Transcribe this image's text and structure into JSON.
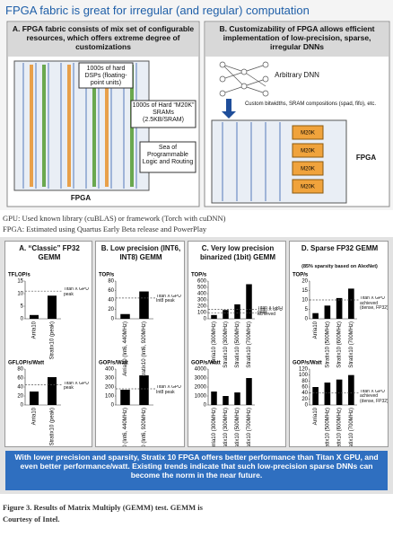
{
  "header": {
    "title": "FPGA fabric is great for irregular (and regular) computation"
  },
  "panel_a": {
    "title": "A. FPGA fabric consists of mix set of configurable resources, which offers extreme degree of customizations",
    "labels": [
      "1000s of hard DSPs (floating-point units)",
      "1000s of Hard “M20K” SRAMs (2.5KB/SRAM)",
      "Sea of Programmable Logic and Routing"
    ],
    "footer": "FPGA"
  },
  "panel_b": {
    "title": "B. Customizability of FPGA allows efficient implementation of low-precision, sparse, irregular DNNs",
    "dnn_label": "Arbitrary DNN",
    "note": "Custom bitwidths, SRAM compositions (spad, fifo), etc.",
    "blocks": [
      "M20K",
      "M20K",
      "M20K",
      "M20K"
    ],
    "footer": "FPGA"
  },
  "notes": [
    "GPU: Used known library (cuBLAS) or framework (Torch with cuDNN)",
    "FPGA: Estimated using Quartus Early Beta release and PowerPlay"
  ],
  "results": {
    "panels": [
      {
        "title": "A. “Classic” FP32 GEMM",
        "charts": [
          {
            "ylabel": "TFLOP/s",
            "ylim": [
              0,
              15
            ],
            "yticks": [
              0,
              5,
              10,
              15
            ],
            "categories": [
              "Arria10",
              "Stratix10 (peak)"
            ],
            "values": [
              1.5,
              9.2
            ],
            "references": [
              {
                "label": "Titan X GPU peak",
                "value": 11
              }
            ]
          },
          {
            "ylabel": "GFLOP/s/Watt",
            "ylim": [
              0,
              80
            ],
            "yticks": [
              0,
              20,
              40,
              60,
              80
            ],
            "categories": [
              "Arria10",
              "Stratix10 (peak)"
            ],
            "values": [
              30,
              62
            ],
            "references": [
              {
                "label": "Titan X GPU peak",
                "value": 45
              }
            ]
          }
        ]
      },
      {
        "title": "B. Low precision (INT6, INT8) GEMM",
        "charts": [
          {
            "ylabel": "TOP/s",
            "ylim": [
              0,
              80
            ],
            "yticks": [
              0,
              20,
              40,
              60,
              80
            ],
            "categories": [
              "Arria10 (Int6, 440MHz)",
              "Stratix10 (Int6, 920MHz)"
            ],
            "values": [
              10,
              58
            ],
            "references": [
              {
                "label": "Titan X GPU Int8 peak",
                "value": 44
              }
            ]
          },
          {
            "ylabel": "GOP/s/Watt",
            "ylim": [
              0,
              400
            ],
            "yticks": [
              0,
              100,
              200,
              300,
              400
            ],
            "categories": [
              "Arria10 (Int6, 440MHz)",
              "Stratix10 (Int6, 920MHz)"
            ],
            "values": [
              170,
              330
            ],
            "references": [
              {
                "label": "Titan X GPU Int8 peak",
                "value": 180
              }
            ]
          }
        ]
      },
      {
        "title": "C. Very low precision binarized (1bit) GEMM",
        "charts": [
          {
            "ylabel": "TOP/s",
            "ylim": [
              0,
              600
            ],
            "yticks": [
              0,
              100,
              200,
              300,
              400,
              500,
              600
            ],
            "categories": [
              "Arria10 (300MHz)",
              "Stratix10 (300MHz)",
              "Stratix10 (500MHz)",
              "Stratix10 (700MHz)"
            ],
            "values": [
              60,
              140,
              230,
              550
            ],
            "references": [
              {
                "label": "Titan X GPU peak",
                "value": 150
              },
              {
                "label": "Titan X GPU achieved",
                "value": 90
              }
            ]
          },
          {
            "ylabel": "GOP/s/Watt",
            "ylim": [
              0,
              4000
            ],
            "yticks": [
              0,
              1000,
              2000,
              3000,
              4000
            ],
            "categories": [
              "Arria10 (300MHz)",
              "Stratix10 (300MHz)",
              "Stratix10 (500MHz)",
              "Stratix10 (700MHz)"
            ],
            "values": [
              1500,
              1000,
              1400,
              3000
            ]
          }
        ]
      },
      {
        "title": "D. Sparse FP32 GEMM",
        "subtitle": "(85% sparsity based on AlexNet)",
        "charts": [
          {
            "ylabel": "TOP/s",
            "ylim": [
              0,
              20
            ],
            "yticks": [
              0,
              5,
              10,
              15,
              20
            ],
            "categories": [
              "Arria10",
              "Stratix10 (500MHz)",
              "Stratix10 (600MHz)",
              "Stratix10 (700MHz)"
            ],
            "values": [
              3,
              7,
              11,
              16
            ],
            "references": [
              {
                "label": "Titan X GPU achieved (dense, FP32)",
                "value": 10
              }
            ]
          },
          {
            "ylabel": "GOP/s/Watt",
            "ylim": [
              0,
              120
            ],
            "yticks": [
              0,
              20,
              40,
              60,
              80,
              100,
              120
            ],
            "categories": [
              "Arria10",
              "Stratix10 (500MHz)",
              "Stratix10 (600MHz)",
              "Stratix10 (700MHz)"
            ],
            "values": [
              60,
              75,
              85,
              100
            ],
            "references": [
              {
                "label": "Titan X GPU achieved (dense, FP32)",
                "value": 40
              }
            ]
          }
        ]
      }
    ],
    "conclusion": "With lower precision and sparsity, Stratix 10 FPGA offers better performance than Titan X GPU, and even better performance/watt. Existing trends indicate that such low-precision sparse DNNs can become the norm in the near future."
  },
  "caption": {
    "lines": [
      "Figure 3. Results of Matrix Multiply (GEMM) test. GEMM is",
      "Courtesy of Intel."
    ]
  }
}
